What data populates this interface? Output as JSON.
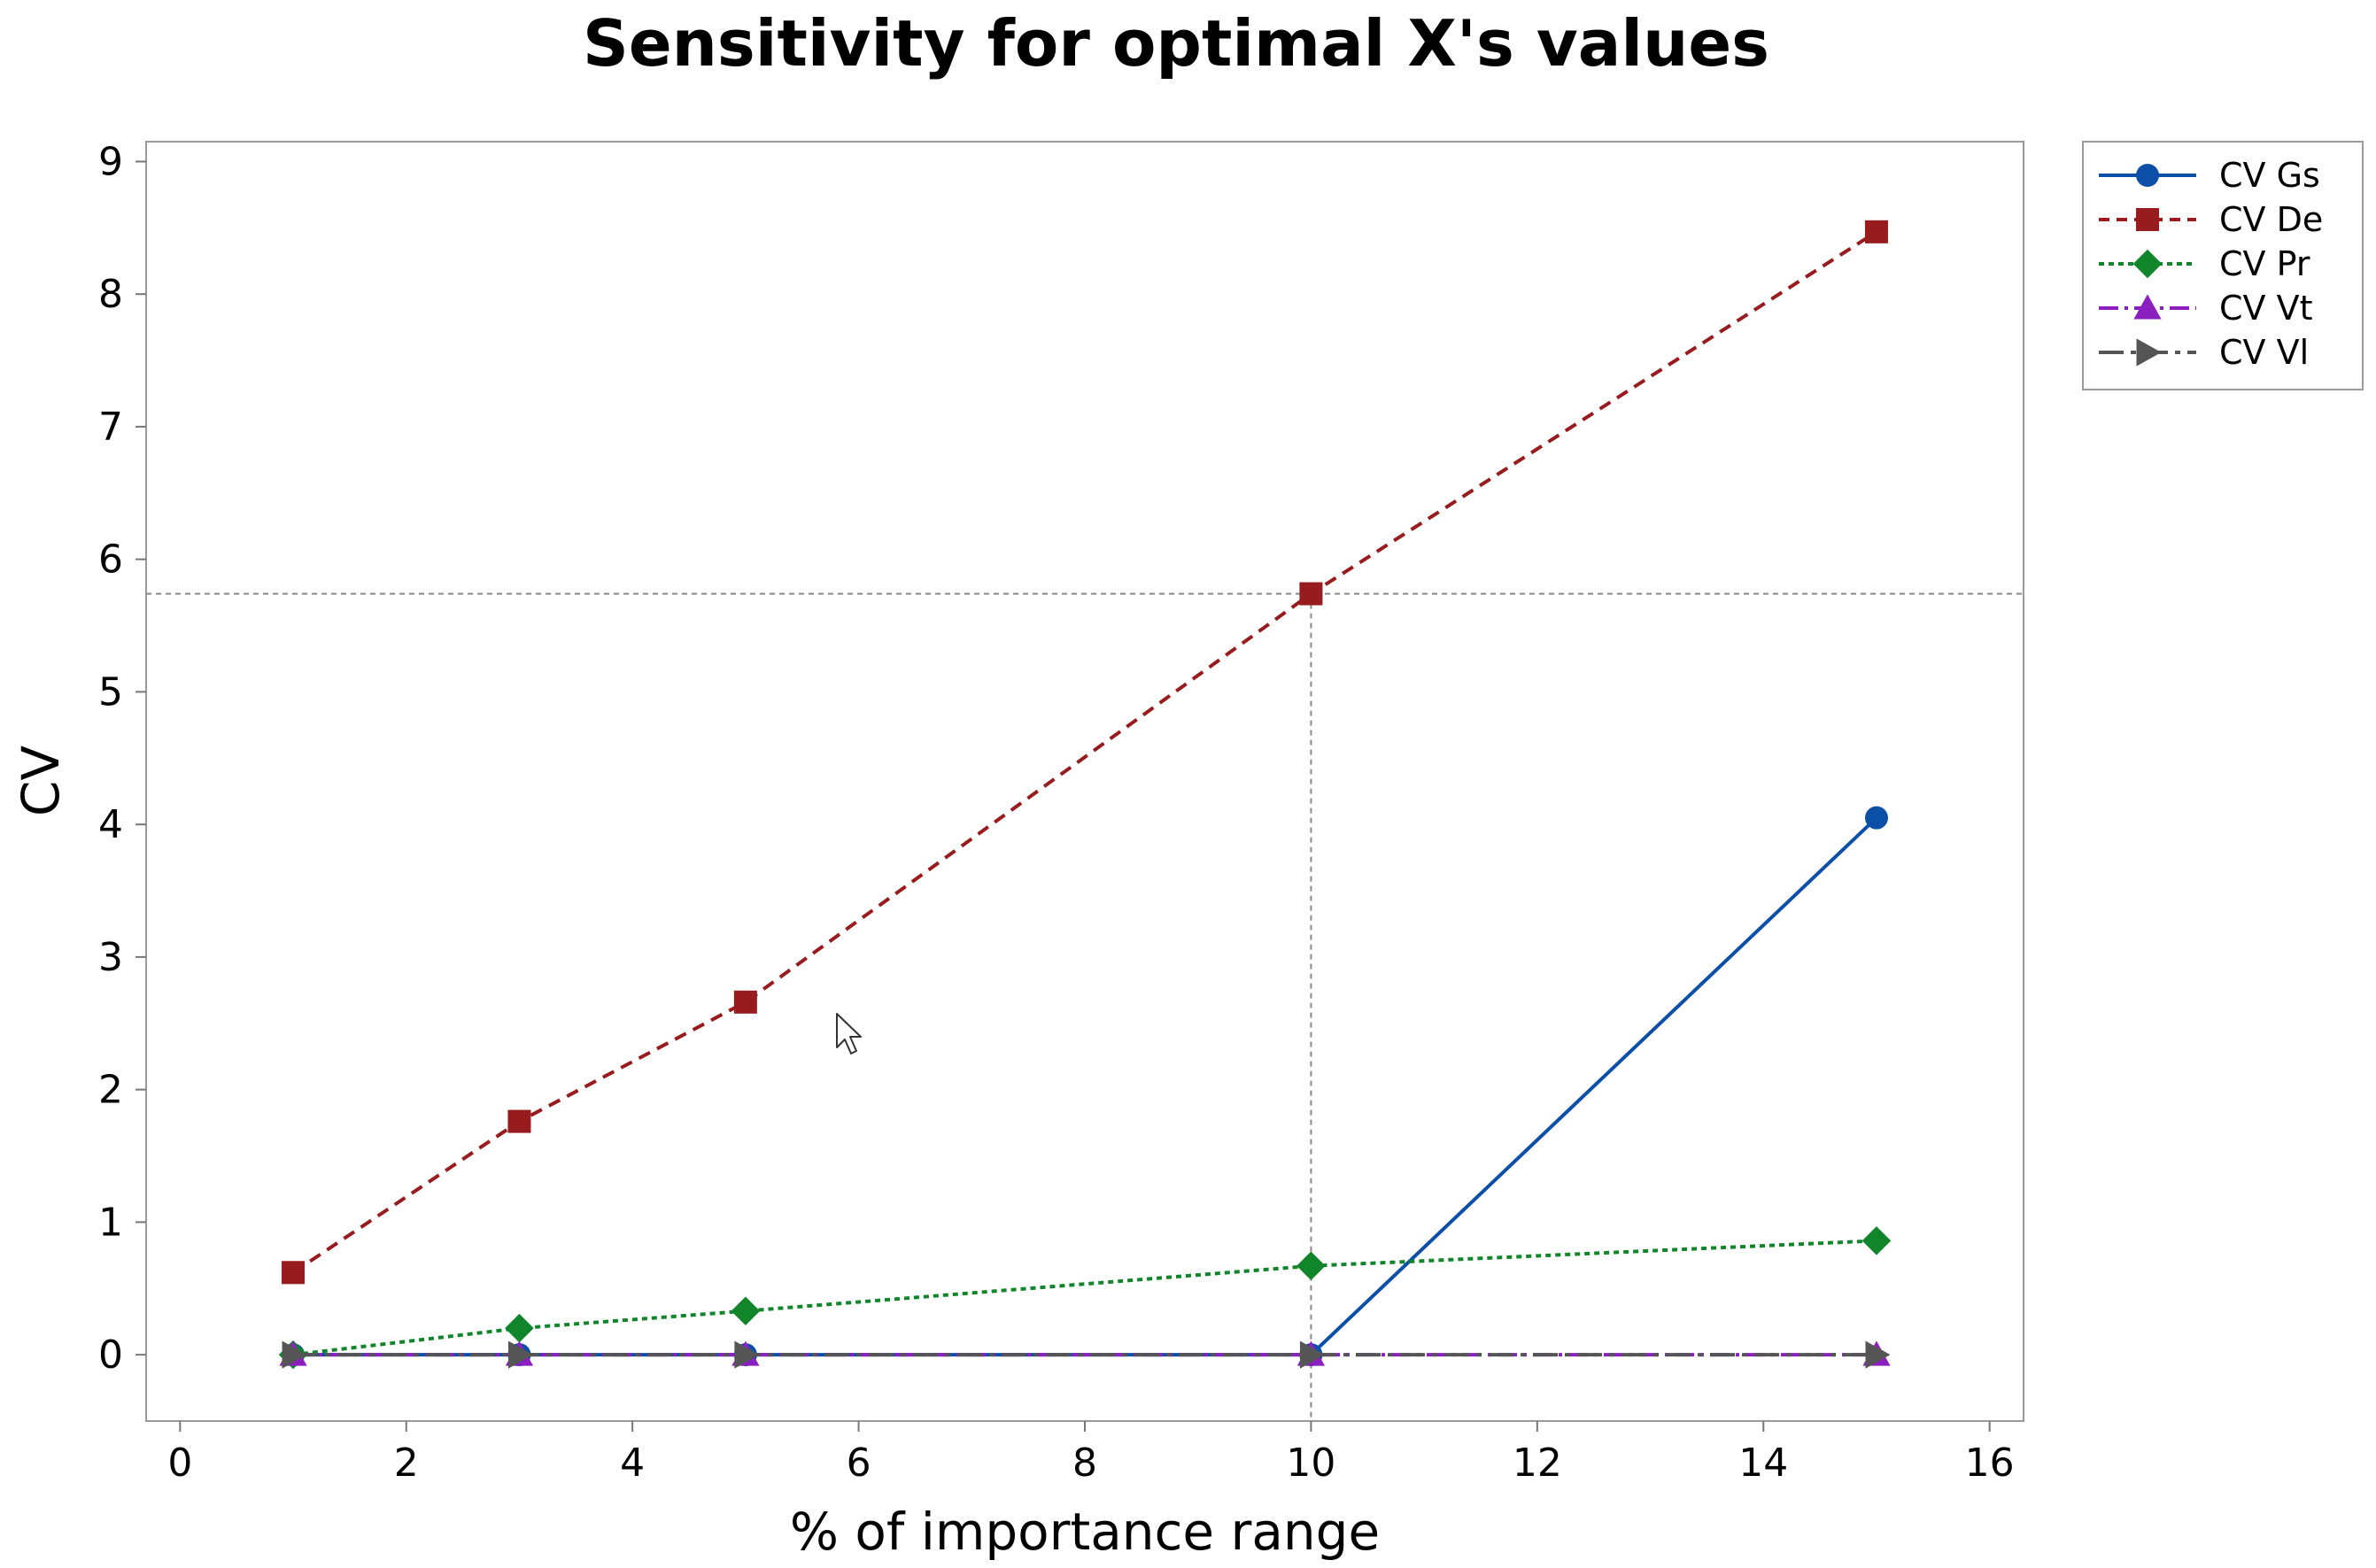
{
  "chart_data": {
    "type": "line",
    "title": "Sensitivity for optimal X's values",
    "xlabel": "% of importance range",
    "ylabel": "CV",
    "xlim": [
      -0.3,
      16.3
    ],
    "ylim": [
      -0.5,
      9.15
    ],
    "x_ticks": [
      0,
      2,
      4,
      6,
      8,
      10,
      12,
      14,
      16
    ],
    "y_ticks": [
      0,
      1,
      2,
      3,
      4,
      5,
      6,
      7,
      8,
      9
    ],
    "x": [
      1,
      3,
      5,
      10,
      15
    ],
    "series": [
      {
        "name": "CV Gs",
        "values": [
          0,
          0,
          0,
          0,
          4.05
        ],
        "color": "#0b4fa8",
        "marker": "circle",
        "dash": "solid"
      },
      {
        "name": "CV De",
        "values": [
          0.62,
          1.76,
          2.66,
          5.74,
          8.47
        ],
        "color": "#981b1e",
        "marker": "square",
        "dash": "dashed"
      },
      {
        "name": "CV Pr",
        "values": [
          0,
          0.2,
          0.33,
          0.67,
          0.86
        ],
        "color": "#11852a",
        "marker": "diamond",
        "dash": "dotted"
      },
      {
        "name": "CV Vt",
        "values": [
          0,
          0,
          0,
          0,
          0
        ],
        "color": "#8b1fbf",
        "marker": "triangle-up",
        "dash": "dashdot"
      },
      {
        "name": "CV Vl",
        "values": [
          0,
          0,
          0,
          0,
          0
        ],
        "color": "#555555",
        "marker": "triangle-right",
        "dash": "longdashdot"
      }
    ],
    "reference_point": {
      "x": 10,
      "y": 5.74
    },
    "grid": false,
    "legend_position": "right"
  }
}
